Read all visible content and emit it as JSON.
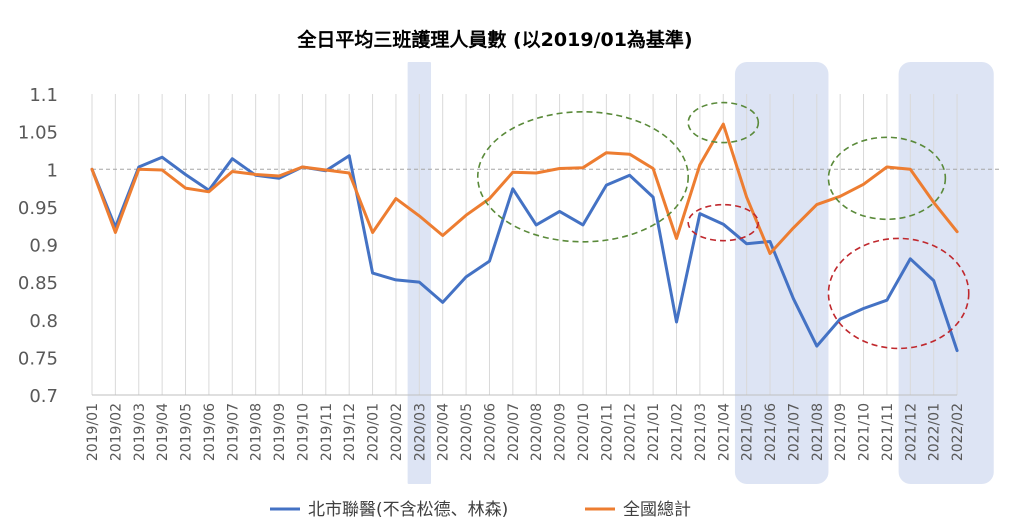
{
  "chart_data": {
    "type": "line",
    "title": "全日平均三班護理人員數 (以2019/01為基準)",
    "categories": [
      "2019/01",
      "2019/02",
      "2019/03",
      "2019/04",
      "2019/05",
      "2019/06",
      "2019/07",
      "2019/08",
      "2019/09",
      "2019/10",
      "2019/11",
      "2019/12",
      "2020/01",
      "2020/02",
      "2020/03",
      "2020/04",
      "2020/05",
      "2020/06",
      "2020/07",
      "2020/08",
      "2020/09",
      "2020/10",
      "2020/11",
      "2020/12",
      "2021/01",
      "2021/02",
      "2021/03",
      "2021/04",
      "2021/05",
      "2021/06",
      "2021/07",
      "2021/08",
      "2021/09",
      "2021/10",
      "2021/11",
      "2021/12",
      "2022/01",
      "2022/02"
    ],
    "ylim": [
      0.7,
      1.1
    ],
    "yticks": [
      "0.7",
      "0.75",
      "0.8",
      "0.85",
      "0.9",
      "0.95",
      "1",
      "1.05",
      "1.1"
    ],
    "reference_line": 1.0,
    "series": [
      {
        "name": "北市聯醫(不含松德、林森)",
        "color": "#4472c4",
        "values": [
          1.0,
          0.923,
          1.003,
          1.016,
          0.993,
          0.972,
          1.014,
          0.992,
          0.988,
          1.003,
          0.998,
          1.018,
          0.862,
          0.853,
          0.85,
          0.823,
          0.857,
          0.878,
          0.974,
          0.926,
          0.944,
          0.926,
          0.979,
          0.992,
          0.963,
          0.797,
          0.941,
          0.927,
          0.901,
          0.904,
          0.828,
          0.765,
          0.801,
          0.815,
          0.826,
          0.881,
          0.852,
          0.759
        ]
      },
      {
        "name": "全國總計",
        "color": "#ed7d31",
        "values": [
          1.0,
          0.916,
          1.0,
          0.999,
          0.975,
          0.97,
          0.997,
          0.993,
          0.991,
          1.003,
          0.999,
          0.995,
          0.916,
          0.961,
          0.938,
          0.912,
          0.939,
          0.961,
          0.996,
          0.995,
          1.001,
          1.002,
          1.022,
          1.02,
          1.001,
          0.908,
          1.006,
          1.06,
          0.963,
          0.888,
          0.922,
          0.953,
          0.964,
          0.98,
          1.003,
          1.0,
          0.956,
          0.917
        ]
      }
    ],
    "highlight_periods": [
      {
        "from": "2020/03",
        "to": "2020/03"
      },
      {
        "from": "2021/05",
        "to": "2021/08"
      },
      {
        "from": "2021/12",
        "to": "2022/02"
      }
    ],
    "annotations": [
      {
        "shape": "ellipse",
        "color": "#5a8a3a",
        "from": "2020/06",
        "to": "2021/02",
        "center_value": 0.99
      },
      {
        "shape": "ellipse",
        "color": "#5a8a3a",
        "from": "2021/03",
        "to": "2021/05",
        "center_value": 1.062
      },
      {
        "shape": "ellipse",
        "color": "#5a8a3a",
        "from": "2021/09",
        "to": "2022/01",
        "center_value": 0.988
      },
      {
        "shape": "ellipse",
        "color": "#c0282d",
        "from": "2021/03",
        "to": "2021/05",
        "center_value": 0.929
      },
      {
        "shape": "ellipse",
        "color": "#c0282d",
        "from": "2021/09",
        "to": "2022/02",
        "center_value": 0.835
      }
    ],
    "legend": "bottom",
    "grid": "vertical"
  }
}
